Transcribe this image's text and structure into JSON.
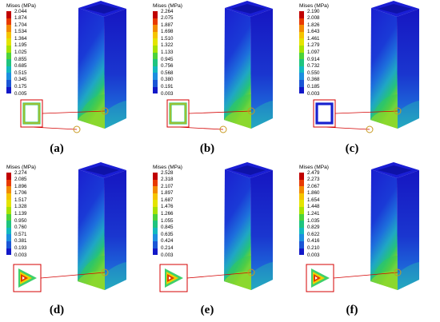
{
  "figure": {
    "legend_title": "Mises (MPa)",
    "colorbar": [
      "#c00000",
      "#e83a00",
      "#f28a00",
      "#f5c400",
      "#e4e400",
      "#a8e200",
      "#4cd33a",
      "#1ec47e",
      "#12b9bf",
      "#1c8ee0",
      "#1a56d6",
      "#1218c8"
    ],
    "panels": [
      {
        "label": "(a)",
        "section": "square",
        "ticks": [
          "2.044",
          "1.874",
          "1.704",
          "1.534",
          "1.364",
          "1.195",
          "1.025",
          "0.855",
          "0.685",
          "0.515",
          "0.345",
          "0.175",
          "0.005"
        ]
      },
      {
        "label": "(b)",
        "section": "square",
        "ticks": [
          "2.264",
          "2.075",
          "1.887",
          "1.698",
          "1.510",
          "1.322",
          "1.133",
          "0.945",
          "0.756",
          "0.568",
          "0.380",
          "0.191",
          "0.003"
        ]
      },
      {
        "label": "(c)",
        "section": "square",
        "ticks": [
          "2.190",
          "2.008",
          "1.826",
          "1.643",
          "1.461",
          "1.279",
          "1.097",
          "0.914",
          "0.732",
          "0.550",
          "0.368",
          "0.185",
          "0.003"
        ]
      },
      {
        "label": "(d)",
        "section": "triangle",
        "ticks": [
          "2.274",
          "2.085",
          "1.896",
          "1.706",
          "1.517",
          "1.328",
          "1.139",
          "0.950",
          "0.760",
          "0.571",
          "0.381",
          "0.193",
          "0.003"
        ]
      },
      {
        "label": "(e)",
        "section": "triangle",
        "ticks": [
          "2.528",
          "2.318",
          "2.107",
          "1.897",
          "1.687",
          "1.476",
          "1.266",
          "1.055",
          "0.845",
          "0.635",
          "0.424",
          "0.214",
          "0.003"
        ]
      },
      {
        "label": "(f)",
        "section": "triangle",
        "ticks": [
          "2.479",
          "2.273",
          "2.067",
          "1.860",
          "1.654",
          "1.448",
          "1.241",
          "1.035",
          "0.829",
          "0.622",
          "0.416",
          "0.210",
          "0.003"
        ]
      }
    ]
  }
}
